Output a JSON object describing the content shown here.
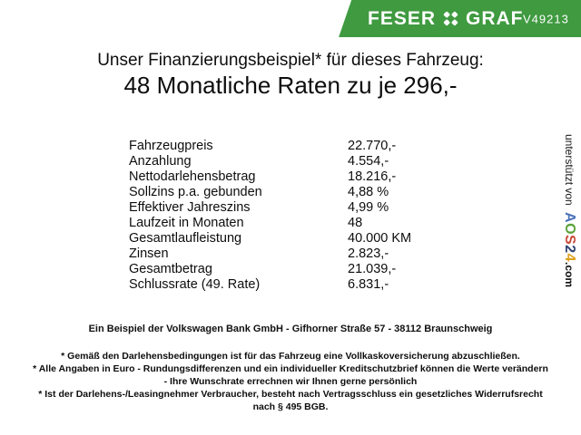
{
  "banner": {
    "brand_left": "FESER",
    "brand_right": "GRAF",
    "code": "V49213",
    "green": "#3f9a40",
    "clover_icon": "four-leaf-clover-x-icon"
  },
  "title": {
    "line1": "Unser Finanzierungsbeispiel* für dieses Fahrzeug:",
    "line2": "48 Monatliche Raten zu je 296,-"
  },
  "finance": {
    "rows": [
      {
        "label": "Fahrzeugpreis",
        "value": "22.770,-"
      },
      {
        "label": "Anzahlung",
        "value": "4.554,-"
      },
      {
        "label": "Nettodarlehensbetrag",
        "value": "18.216,-"
      },
      {
        "label": "Sollzins p.a. gebunden",
        "value": "4,88 %"
      },
      {
        "label": "Effektiver Jahreszins",
        "value": "4,99 %"
      },
      {
        "label": "Laufzeit in Monaten",
        "value": "48"
      },
      {
        "label": "Gesamtlaufleistung",
        "value": "40.000 KM"
      },
      {
        "label": "Zinsen",
        "value": "2.823,-"
      },
      {
        "label": "Gesamtbetrag",
        "value": "21.039,-"
      },
      {
        "label": "Schlussrate (49. Rate)",
        "value": "6.831,-"
      }
    ]
  },
  "bank_line": "Ein Beispiel der Volkswagen Bank GmbH - Gifhorner Straße 57 - 38112 Braunschweig",
  "disclaimer_lines": [
    "* Gemäß den Darlehensbedingungen ist für das Fahrzeug eine Vollkaskoversicherung abzuschließen.",
    "* Alle Angaben in Euro - Rundungsdifferenzen und ein individueller Kreditschutzbrief können die Werte verändern",
    "- Ihre Wunschrate errechnen wir Ihnen gerne persönlich",
    "* Ist der Darlehens-/Leasingnehmer Verbraucher, besteht nach Vertragsschluss ein gesetzliches Widerrufsrecht",
    "nach § 495 BGB."
  ],
  "watermark": {
    "prefix": "unterstützt von",
    "letters": [
      {
        "char": "A",
        "color": "#4a72b8"
      },
      {
        "char": "O",
        "color": "#5aa33a"
      },
      {
        "char": "S",
        "color": "#c94a3a"
      },
      {
        "char": "2",
        "color": "#2f4372"
      },
      {
        "char": "4",
        "color": "#dfa21f"
      }
    ],
    "suffix": ".com"
  }
}
